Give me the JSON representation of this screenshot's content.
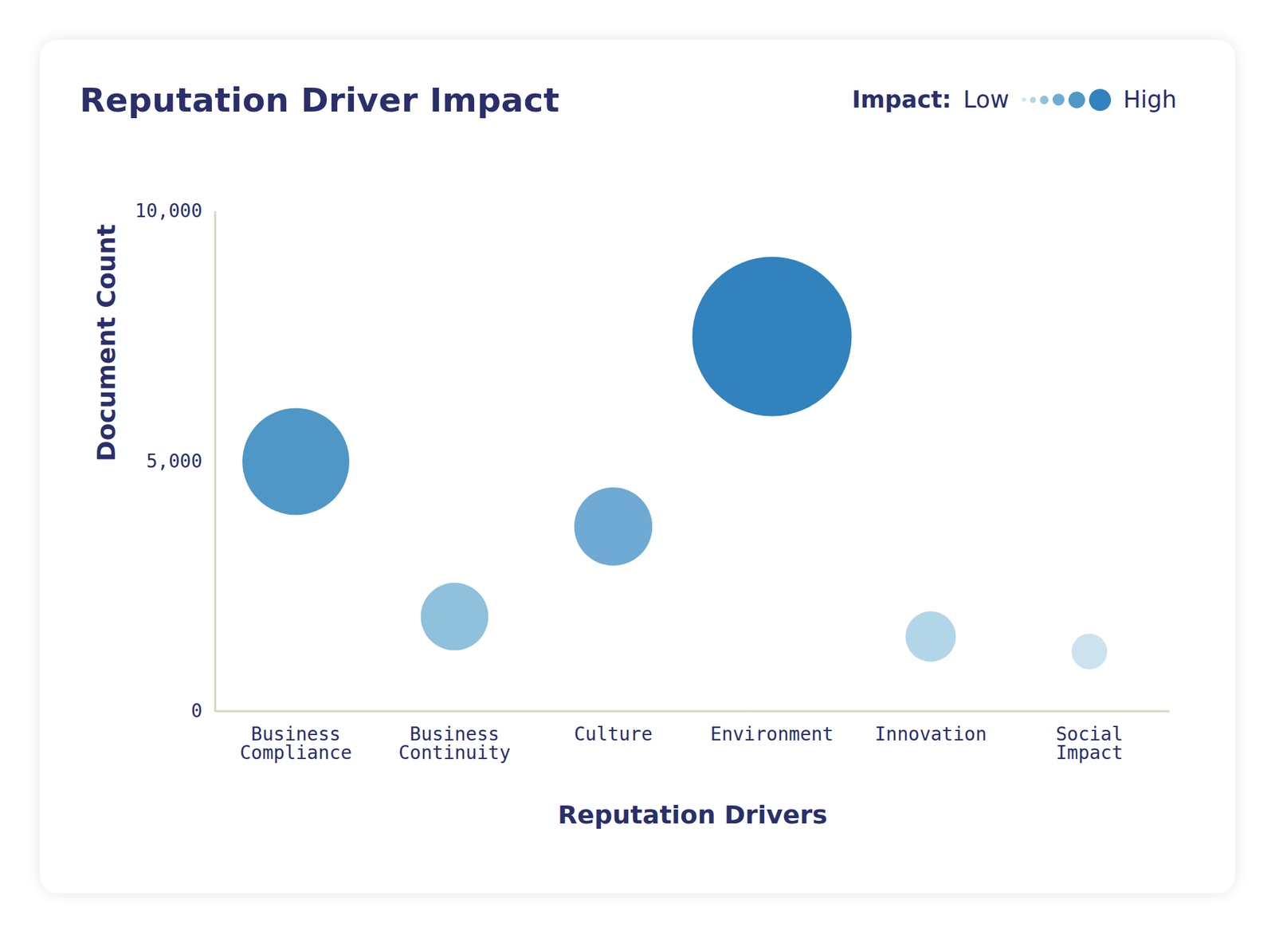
{
  "chart_data": {
    "type": "bubble",
    "title": "Reputation Driver Impact",
    "x_label": "Reputation Drivers",
    "y_label": "Document Count",
    "categories": [
      "Business Compliance",
      "Business Continuity",
      "Culture",
      "Environment",
      "Innovation",
      "Social Impact"
    ],
    "values": [
      5000,
      1900,
      3700,
      7500,
      1500,
      1200
    ],
    "sizes": [
      45,
      18,
      24,
      100,
      10,
      5
    ],
    "colors": [
      "#4f97c7",
      "#8fc0dc",
      "#6eaad4",
      "#3282bd",
      "#b3d5e8",
      "#cce2ef"
    ],
    "ylim": [
      0,
      10000
    ],
    "yticks": [
      0,
      {
        "value": 5000,
        "label": "5,000"
      },
      {
        "value": 10000,
        "label": "10,000"
      }
    ],
    "legend": "top-right",
    "legend_title": "Impact:",
    "legend_labels": [
      "Low",
      "High"
    ]
  }
}
